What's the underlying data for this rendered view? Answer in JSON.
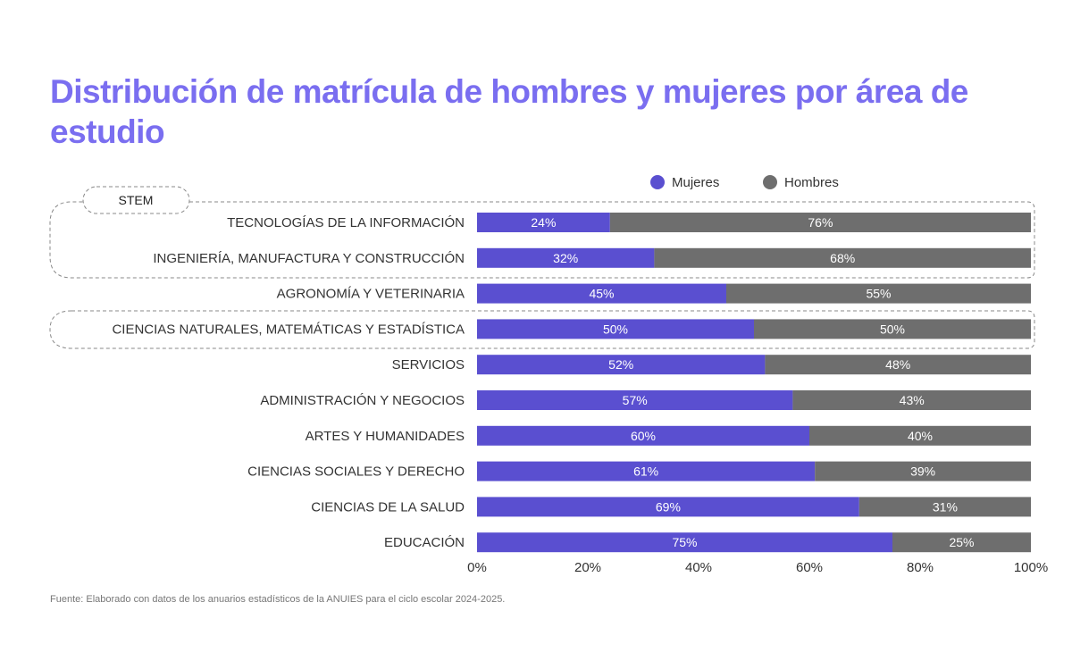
{
  "title": "Distribución de matrícula de hombres y mujeres por área de estudio",
  "source": "Fuente: Elaborado con datos de los anuarios estadísticos de la ANUIES para el ciclo escolar 2024-2025.",
  "stem_label": "STEM",
  "chart_data": {
    "type": "bar",
    "stacked": true,
    "orientation": "horizontal",
    "categories": [
      "TECNOLOGÍAS DE LA INFORMACIÓN",
      "INGENIERÍA, MANUFACTURA Y CONSTRUCCIÓN",
      "AGRONOMÍA Y VETERINARIA",
      "CIENCIAS NATURALES, MATEMÁTICAS Y ESTADÍSTICA",
      "SERVICIOS",
      "ADMINISTRACIÓN Y NEGOCIOS",
      "ARTES Y HUMANIDADES",
      "CIENCIAS SOCIALES Y DERECHO",
      "CIENCIAS DE LA SALUD",
      "EDUCACIÓN"
    ],
    "series": [
      {
        "name": "Mujeres",
        "color": "#5a4fd0",
        "values": [
          24,
          32,
          45,
          50,
          52,
          57,
          60,
          61,
          69,
          75
        ]
      },
      {
        "name": "Hombres",
        "color": "#6e6e6e",
        "values": [
          76,
          68,
          55,
          50,
          48,
          43,
          40,
          39,
          31,
          25
        ]
      }
    ],
    "xlim": [
      0,
      100
    ],
    "xticks": [
      "0%",
      "20%",
      "40%",
      "60%",
      "80%",
      "100%"
    ],
    "legend": "top-right",
    "stem_groups": [
      [
        0,
        1
      ],
      [
        3
      ]
    ]
  }
}
